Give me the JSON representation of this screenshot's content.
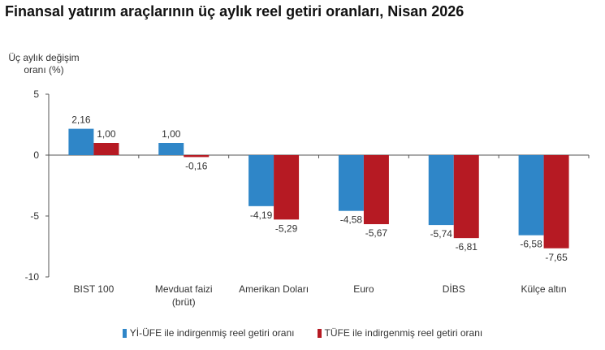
{
  "title": "Finansal yatırım araçlarının üç aylık reel getiri oranları, Nisan 2026",
  "colors": {
    "series1": "#2f86c8",
    "series2": "#b61a23",
    "axis": "#555555"
  },
  "chart_data": {
    "type": "bar",
    "title": "Finansal yatırım araçlarının üç aylık reel getiri oranları, Nisan 2026",
    "ylabel": "Üç aylık değişim oranı (%)",
    "ylabel_lines": [
      "Üç aylık değişim",
      "oranı (%)"
    ],
    "xlabel": "",
    "ylim": [
      -10,
      5
    ],
    "yticks": [
      5,
      0,
      -5,
      -10
    ],
    "grid": false,
    "legend_position": "bottom",
    "categories": [
      [
        "BIST 100"
      ],
      [
        "Mevduat faizi",
        "(brüt)"
      ],
      [
        "Amerikan Doları"
      ],
      [
        "Euro"
      ],
      [
        "DİBS"
      ],
      [
        "Külçe altın"
      ]
    ],
    "series": [
      {
        "name": "Yİ-ÜFE ile indirgenmiş reel getiri oranı",
        "values": [
          2.16,
          1.0,
          -4.19,
          -4.58,
          -5.74,
          -6.58
        ],
        "labels": [
          "2,16",
          "1,00",
          "-4,19",
          "-4,58",
          "-5,74",
          "-6,58"
        ]
      },
      {
        "name": "TÜFE ile indirgenmiş reel getiri oranı",
        "values": [
          1.0,
          -0.16,
          -5.29,
          -5.67,
          -6.81,
          -7.65
        ],
        "labels": [
          "1,00",
          "-0,16",
          "-5,29",
          "-5,67",
          "-6,81",
          "-7,65"
        ]
      }
    ]
  }
}
